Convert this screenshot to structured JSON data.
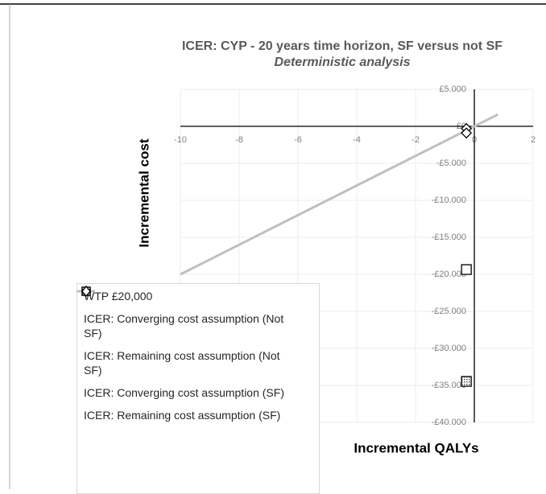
{
  "chart_data": {
    "type": "scatter",
    "title": "ICER: CYP - 20 years time horizon, SF versus not SF",
    "subtitle": "Deterministic analysis",
    "x_label": "Incremental QALYs",
    "y_label": "Incremental cost",
    "xlim": [
      -10,
      2
    ],
    "xticks": [
      -10,
      -8,
      -6,
      -4,
      -2,
      0,
      2
    ],
    "ylim": [
      -40000,
      5000
    ],
    "yticks": [
      {
        "value": 5000,
        "label": "£5.000"
      },
      {
        "value": 0,
        "label": "£0"
      },
      {
        "value": -5000,
        "label": "-£5.000"
      },
      {
        "value": -10000,
        "label": "-£10.000"
      },
      {
        "value": -15000,
        "label": "-£15.000"
      },
      {
        "value": -20000,
        "label": "-£20.000"
      },
      {
        "value": -25000,
        "label": "-£25.000"
      },
      {
        "value": -30000,
        "label": "-£30.000"
      },
      {
        "value": -35000,
        "label": "-£35.000"
      },
      {
        "value": -40000,
        "label": "-£40.000"
      }
    ],
    "grid": true,
    "series": [
      {
        "name": "WTP £20,000",
        "type": "line",
        "color": "#bfbfbf",
        "x": [
          -10,
          0.8
        ],
        "y": [
          -20000,
          1600
        ]
      },
      {
        "name": "ICER: Converging cost assumption (Not SF)",
        "marker": "square",
        "color": "#000000",
        "x": [
          -0.27
        ],
        "y": [
          -19350
        ]
      },
      {
        "name": "ICER: Remaining cost assumption (Not SF)",
        "marker": "square",
        "pattern": true,
        "color": "#000000",
        "x": [
          -0.27
        ],
        "y": [
          -34460
        ]
      },
      {
        "name": "ICER: Converging cost assumption (SF)",
        "marker": "diamond",
        "color": "#000000",
        "x": [
          -0.27
        ],
        "y": [
          -300
        ]
      },
      {
        "name": "ICER: Remaining cost assumption (SF)",
        "marker": "diamond",
        "color": "#000000",
        "x": [
          -0.27
        ],
        "y": [
          -900
        ]
      }
    ]
  }
}
